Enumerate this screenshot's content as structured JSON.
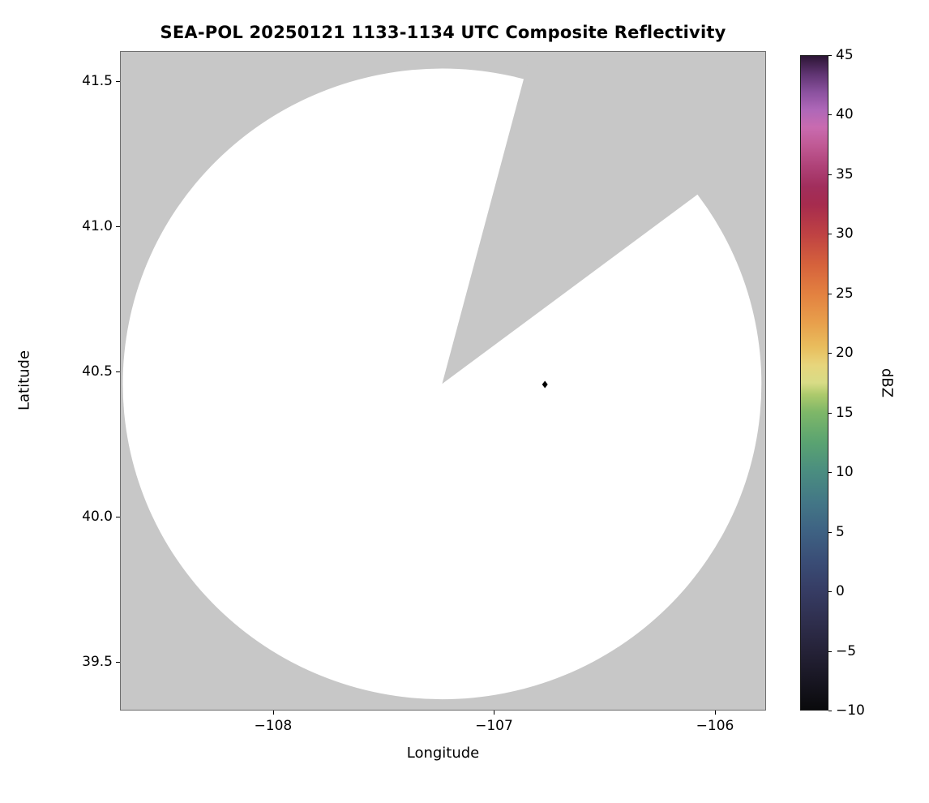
{
  "chart_data": {
    "type": "heatmap",
    "title": "SEA-POL 20250121 1133-1134 UTC Composite Reflectivity",
    "xlabel": "Longitude",
    "ylabel": "Latitude",
    "xlim": [
      -108.693,
      -105.769
    ],
    "ylim": [
      39.332,
      41.603
    ],
    "grid": false,
    "x_ticks": [
      {
        "v": -108,
        "label": "−108"
      },
      {
        "v": -107,
        "label": "−107"
      },
      {
        "v": -106,
        "label": "−106"
      }
    ],
    "y_ticks": [
      {
        "v": 39.5,
        "label": "39.5"
      },
      {
        "v": 40.0,
        "label": "40.0"
      },
      {
        "v": 40.5,
        "label": "40.5"
      },
      {
        "v": 41.0,
        "label": "41.0"
      },
      {
        "v": 41.5,
        "label": "41.5"
      }
    ],
    "colorbar": {
      "label": "dBZ",
      "min": -10,
      "max": 45,
      "ticks": [
        {
          "v": -10,
          "label": "−10"
        },
        {
          "v": -5,
          "label": "−5"
        },
        {
          "v": 0,
          "label": "0"
        },
        {
          "v": 5,
          "label": "5"
        },
        {
          "v": 10,
          "label": "10"
        },
        {
          "v": 15,
          "label": "15"
        },
        {
          "v": 20,
          "label": "20"
        },
        {
          "v": 25,
          "label": "25"
        },
        {
          "v": 30,
          "label": "30"
        },
        {
          "v": 35,
          "label": "35"
        },
        {
          "v": 40,
          "label": "40"
        },
        {
          "v": 45,
          "label": "45"
        }
      ],
      "gradient_stops": [
        [
          -10,
          "#0a0a0c"
        ],
        [
          -7.5,
          "#181622"
        ],
        [
          -5,
          "#252238"
        ],
        [
          -2.5,
          "#2f2f4e"
        ],
        [
          0,
          "#363c64"
        ],
        [
          2.5,
          "#3a4d76"
        ],
        [
          5,
          "#3e6283"
        ],
        [
          7.5,
          "#437786"
        ],
        [
          10,
          "#4a8d80"
        ],
        [
          12.5,
          "#5aa371"
        ],
        [
          15,
          "#7eb768"
        ],
        [
          16.5,
          "#adca6c"
        ],
        [
          17.5,
          "#d8dc86"
        ],
        [
          19,
          "#e7d57c"
        ],
        [
          20.5,
          "#e9bd5d"
        ],
        [
          22.5,
          "#e8a04c"
        ],
        [
          25,
          "#e38140"
        ],
        [
          27.5,
          "#d5613c"
        ],
        [
          30,
          "#bf4243"
        ],
        [
          32.5,
          "#a62b4e"
        ],
        [
          34,
          "#a12e5c"
        ],
        [
          35.5,
          "#ad3f74"
        ],
        [
          37.5,
          "#c05a95"
        ],
        [
          39,
          "#c96bb0"
        ],
        [
          40.5,
          "#ae67b8"
        ],
        [
          42,
          "#8a519e"
        ],
        [
          43.5,
          "#5e3370"
        ],
        [
          45,
          "#2c1535"
        ]
      ]
    },
    "radar_coverage": {
      "center_lon": -107.235,
      "center_lat": 40.457,
      "radius_lon_deg": 1.445,
      "radius_lat_deg": 1.086,
      "blocked_sector_azimuth_deg": [
        14.8,
        53.1
      ],
      "coverage_fill": "#ffffff",
      "background_fill": "#c7c7c7",
      "spine_color": "#6e6e6e"
    },
    "radar_marker": {
      "lon": -106.77,
      "lat": 40.455,
      "shape": "diamond",
      "color": "#000000"
    }
  }
}
